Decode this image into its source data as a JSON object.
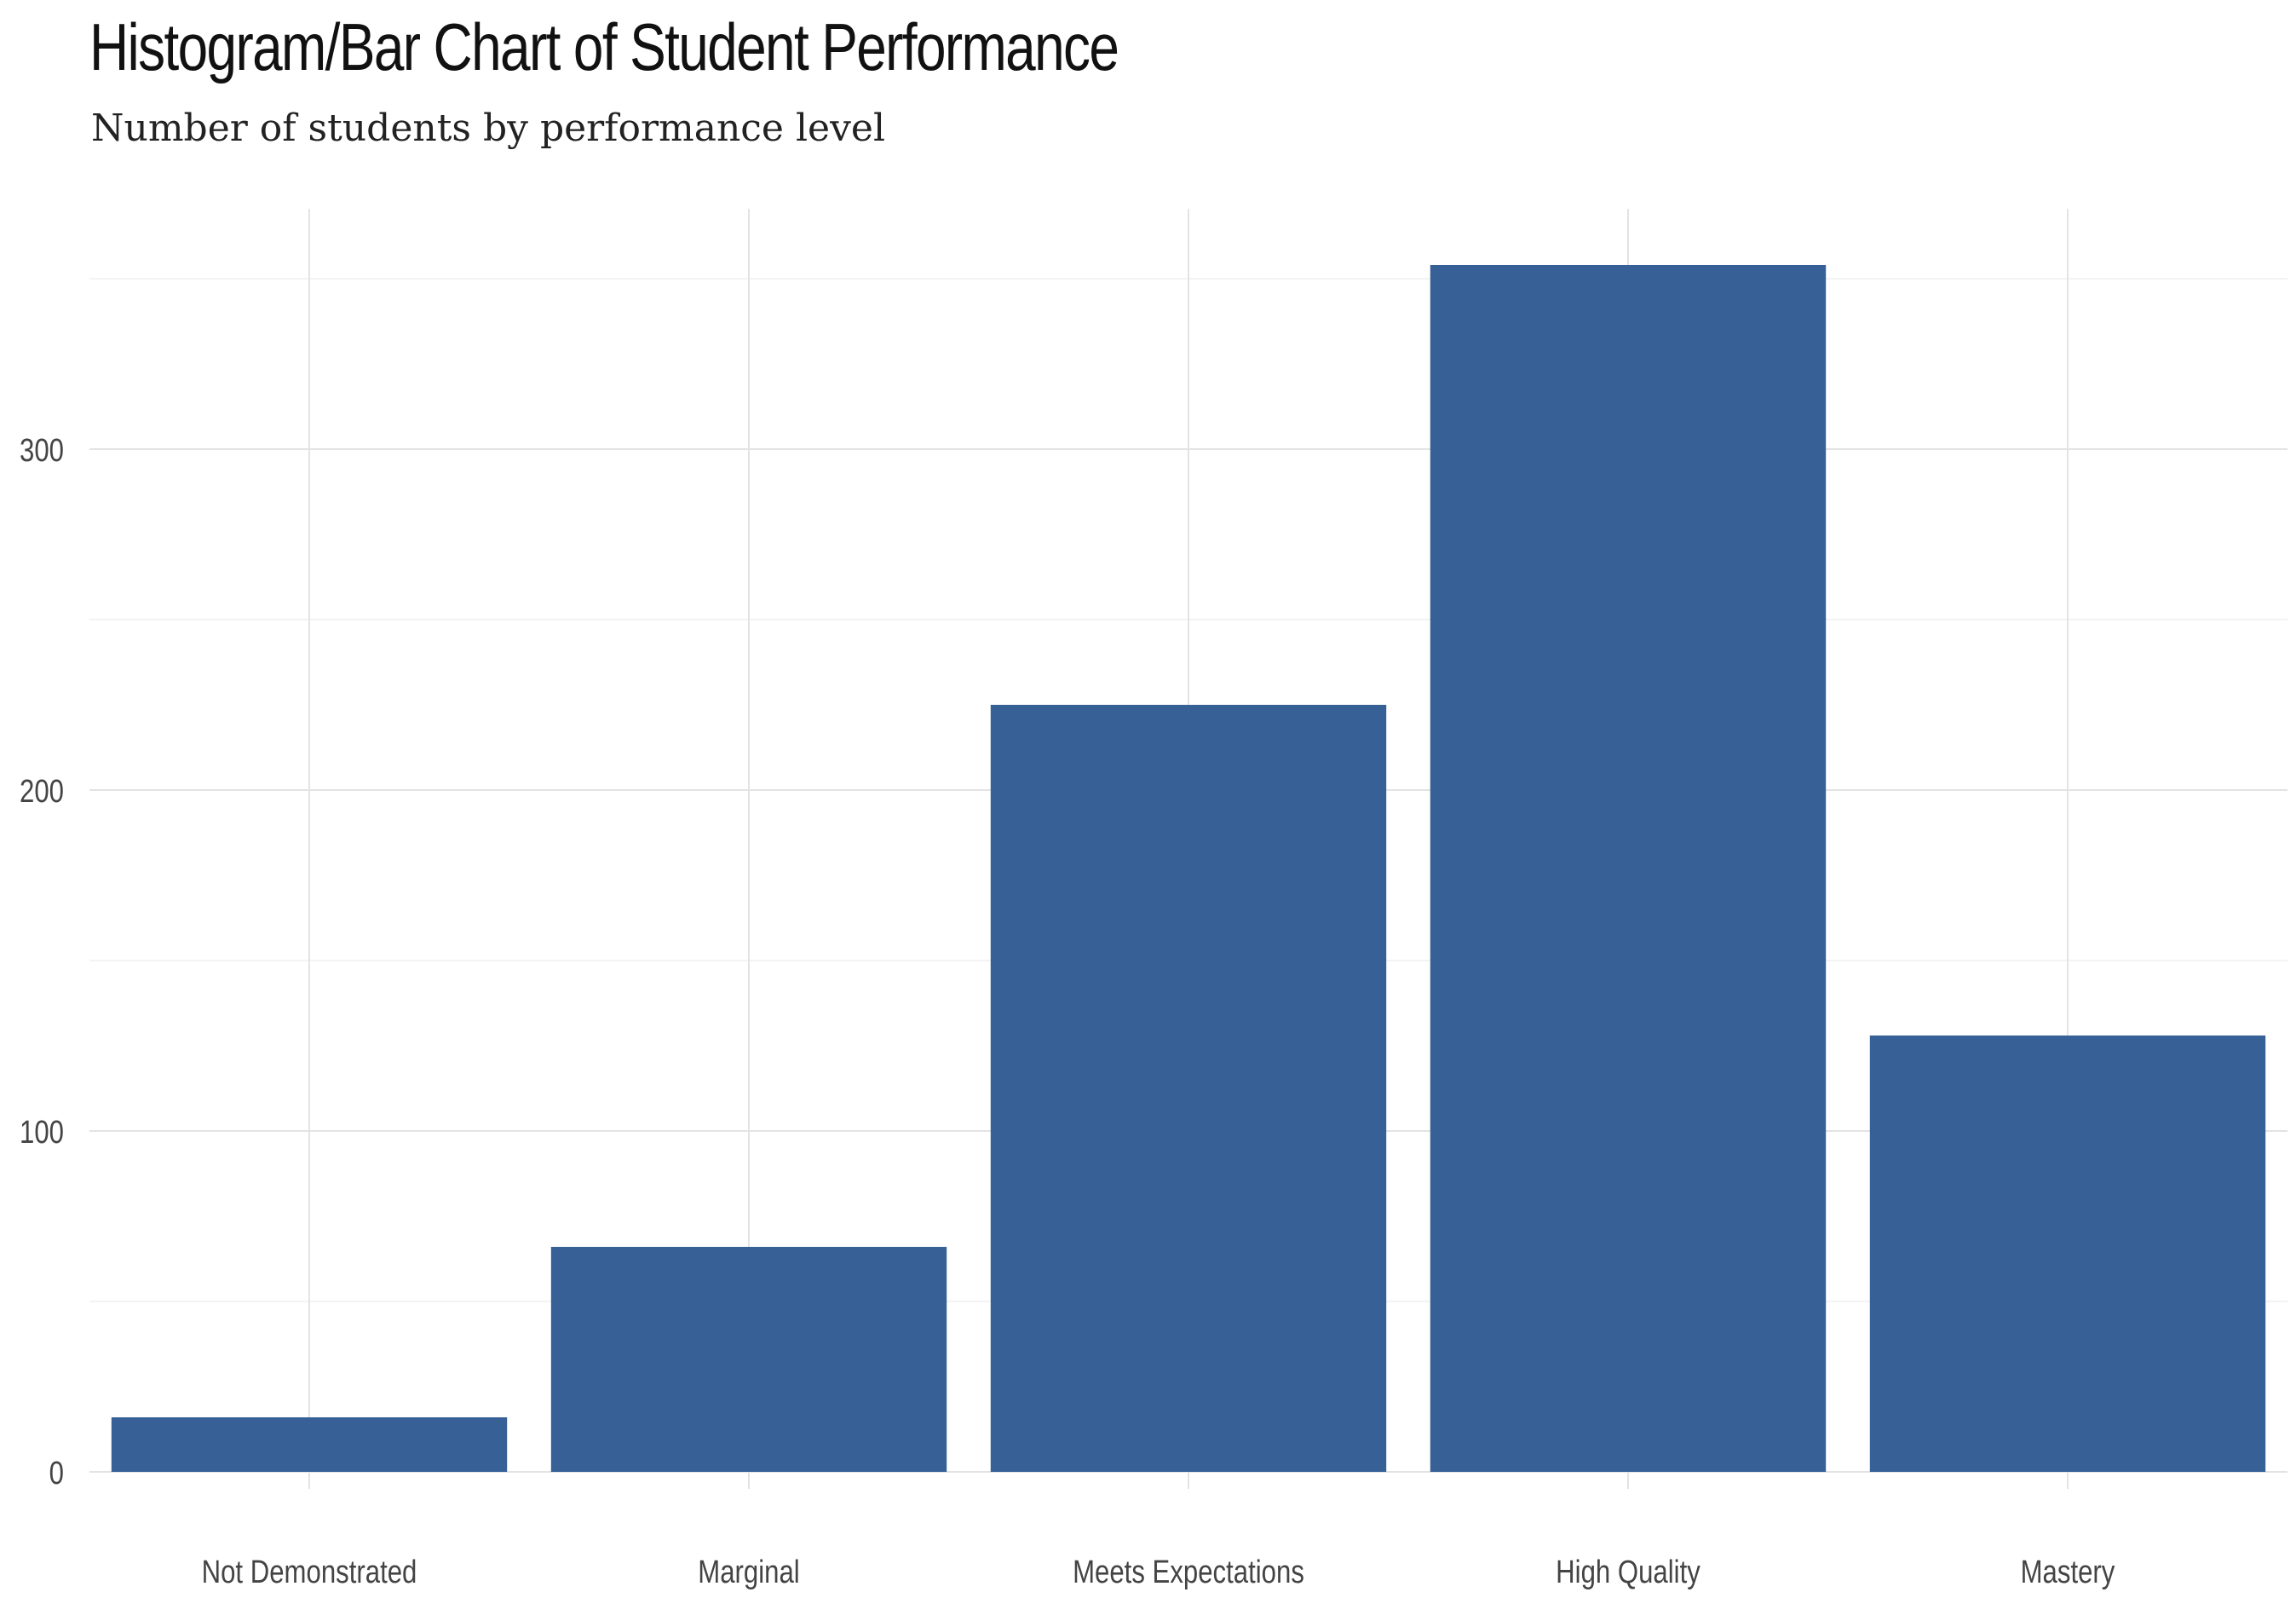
{
  "chart_data": {
    "type": "bar",
    "title": "Histogram/Bar Chart of Student Performance",
    "subtitle": "Number of students by performance level",
    "xlabel": "",
    "ylabel": "",
    "categories": [
      "Not Demonstrated",
      "Marginal",
      "Meets Expectations",
      "High Quality",
      "Mastery"
    ],
    "values": [
      16,
      66,
      225,
      354,
      128
    ],
    "ylim": [
      0,
      370
    ],
    "yticks": [
      0,
      100,
      200,
      300
    ],
    "grid": true,
    "legend": "none",
    "bar_color": "#376196",
    "grid_color": "#e3e3e3"
  }
}
